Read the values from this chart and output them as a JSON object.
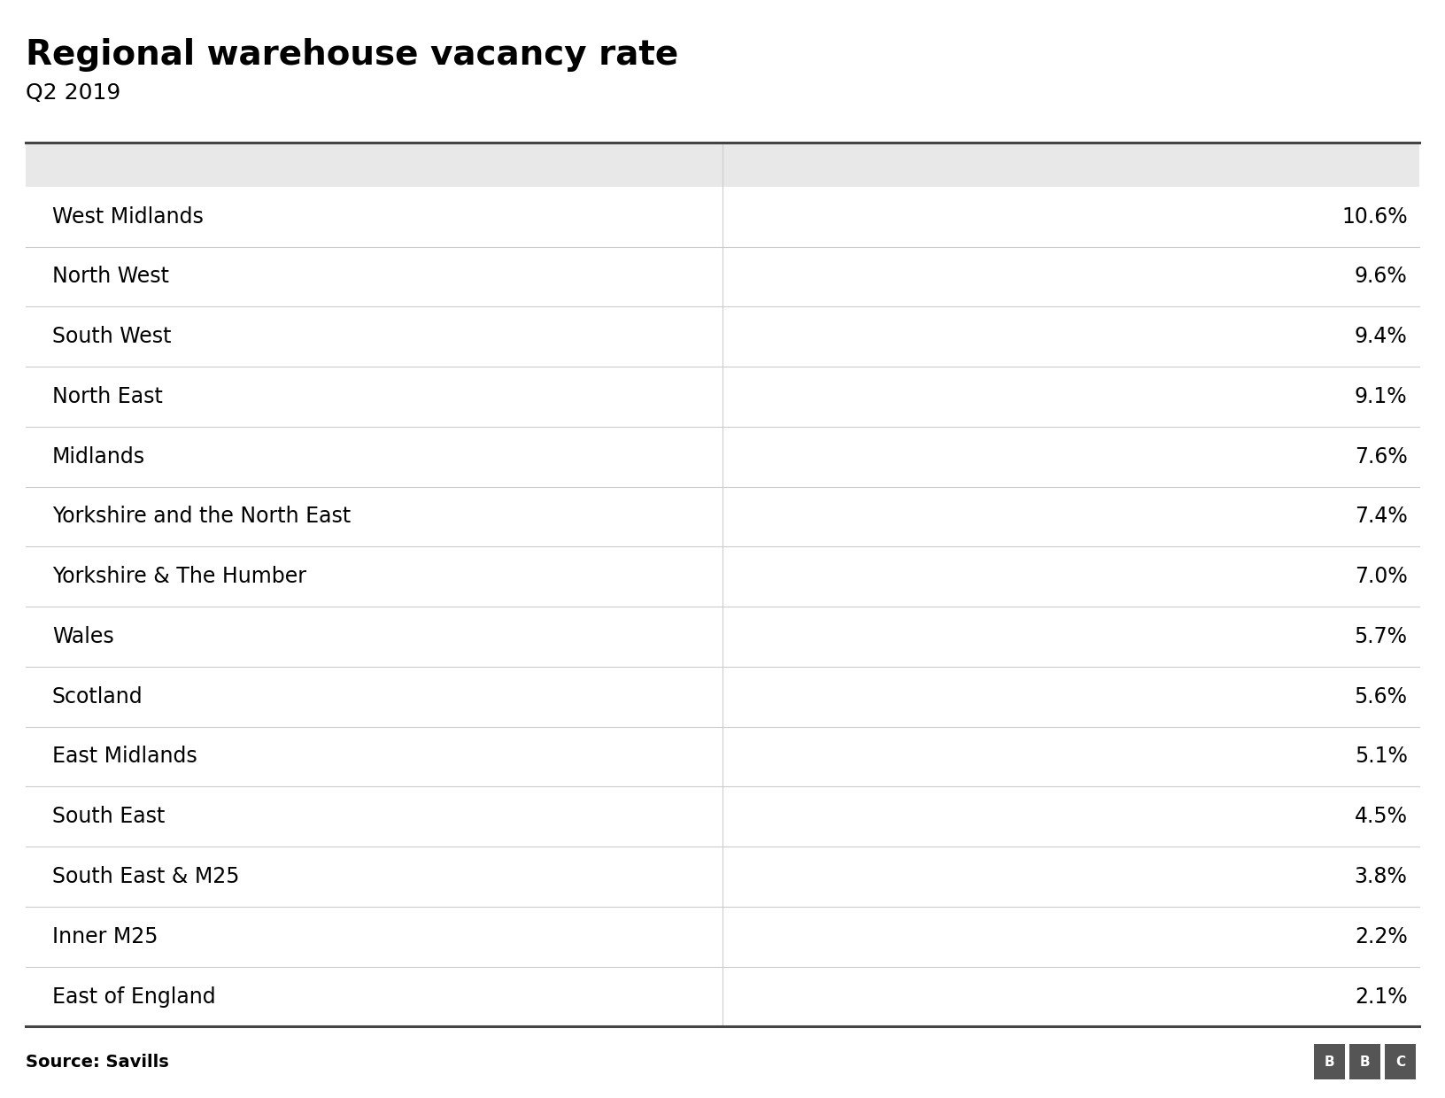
{
  "title": "Regional warehouse vacancy rate",
  "subtitle": "Q2 2019",
  "source": "Source: Savills",
  "regions": [
    "West Midlands",
    "North West",
    "South West",
    "North East",
    "Midlands",
    "Yorkshire and the North East",
    "Yorkshire & The Humber",
    "Wales",
    "Scotland",
    "East Midlands",
    "South East",
    "South East & M25",
    "Inner M25",
    "East of England"
  ],
  "values": [
    "10.6%",
    "9.6%",
    "9.4%",
    "9.1%",
    "7.6%",
    "7.4%",
    "7.0%",
    "5.7%",
    "5.6%",
    "5.1%",
    "4.5%",
    "3.8%",
    "2.2%",
    "2.1%"
  ],
  "header_bg_color": "#e8e8e8",
  "row_bg_color": "#ffffff",
  "divider_color": "#cccccc",
  "title_fontsize": 28,
  "subtitle_fontsize": 18,
  "cell_fontsize": 17,
  "source_fontsize": 14,
  "col_split": 0.5,
  "background_color": "#ffffff",
  "title_color": "#000000",
  "text_color": "#000000",
  "border_color": "#444444",
  "bbc_box_color": "#555555"
}
